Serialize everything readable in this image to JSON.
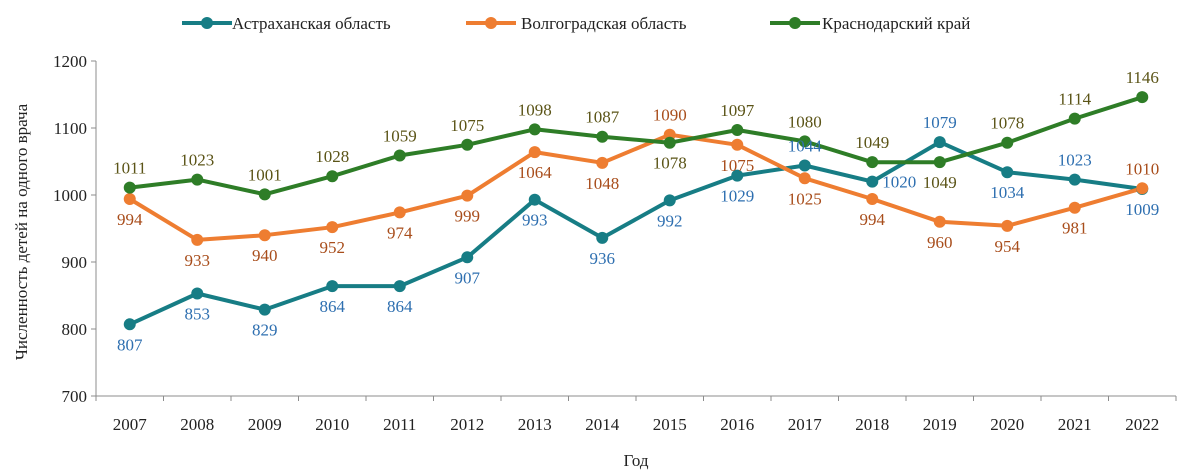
{
  "chart_data": {
    "type": "line",
    "title": "",
    "xlabel": "Год",
    "ylabel": "Численность детей на одного врача",
    "ylim": [
      700,
      1200
    ],
    "yticks": [
      700,
      800,
      900,
      1000,
      1100,
      1200
    ],
    "grid": false,
    "legend_position": "top",
    "categories": [
      "2007",
      "2008",
      "2009",
      "2010",
      "2011",
      "2012",
      "2013",
      "2014",
      "2015",
      "2016",
      "2017",
      "2018",
      "2019",
      "2020",
      "2021",
      "2022"
    ],
    "series": [
      {
        "name": "Астраханская область",
        "color": "#177d85",
        "label_color": "#2e6fb0",
        "values": [
          807,
          853,
          829,
          864,
          864,
          907,
          993,
          936,
          992,
          1029,
          1044,
          1020,
          1079,
          1034,
          1023,
          1009
        ],
        "label_positions": [
          "below",
          "below",
          "below",
          "below",
          "below",
          "below",
          "below",
          "below",
          "below",
          "below",
          "above",
          "right",
          "above",
          "below",
          "above",
          "below"
        ]
      },
      {
        "name": "Волгоградская область",
        "color": "#ee7d31",
        "label_color": "#a84d1b",
        "values": [
          994,
          933,
          940,
          952,
          974,
          999,
          1064,
          1048,
          1090,
          1075,
          1025,
          994,
          960,
          954,
          981,
          1010
        ],
        "label_positions": [
          "below",
          "below",
          "below",
          "below",
          "below",
          "below",
          "below",
          "below",
          "above",
          "below",
          "below",
          "below",
          "below",
          "below",
          "below",
          "above"
        ]
      },
      {
        "name": "Краснодарский край",
        "color": "#2e7d27",
        "label_color": "#5b5417",
        "values": [
          1011,
          1023,
          1001,
          1028,
          1059,
          1075,
          1098,
          1087,
          1078,
          1097,
          1080,
          1049,
          1049,
          1078,
          1114,
          1146
        ],
        "label_positions": [
          "above",
          "above",
          "above",
          "above",
          "above",
          "above",
          "above",
          "above",
          "below",
          "above",
          "above",
          "above",
          "below",
          "above",
          "above",
          "above"
        ]
      }
    ]
  }
}
